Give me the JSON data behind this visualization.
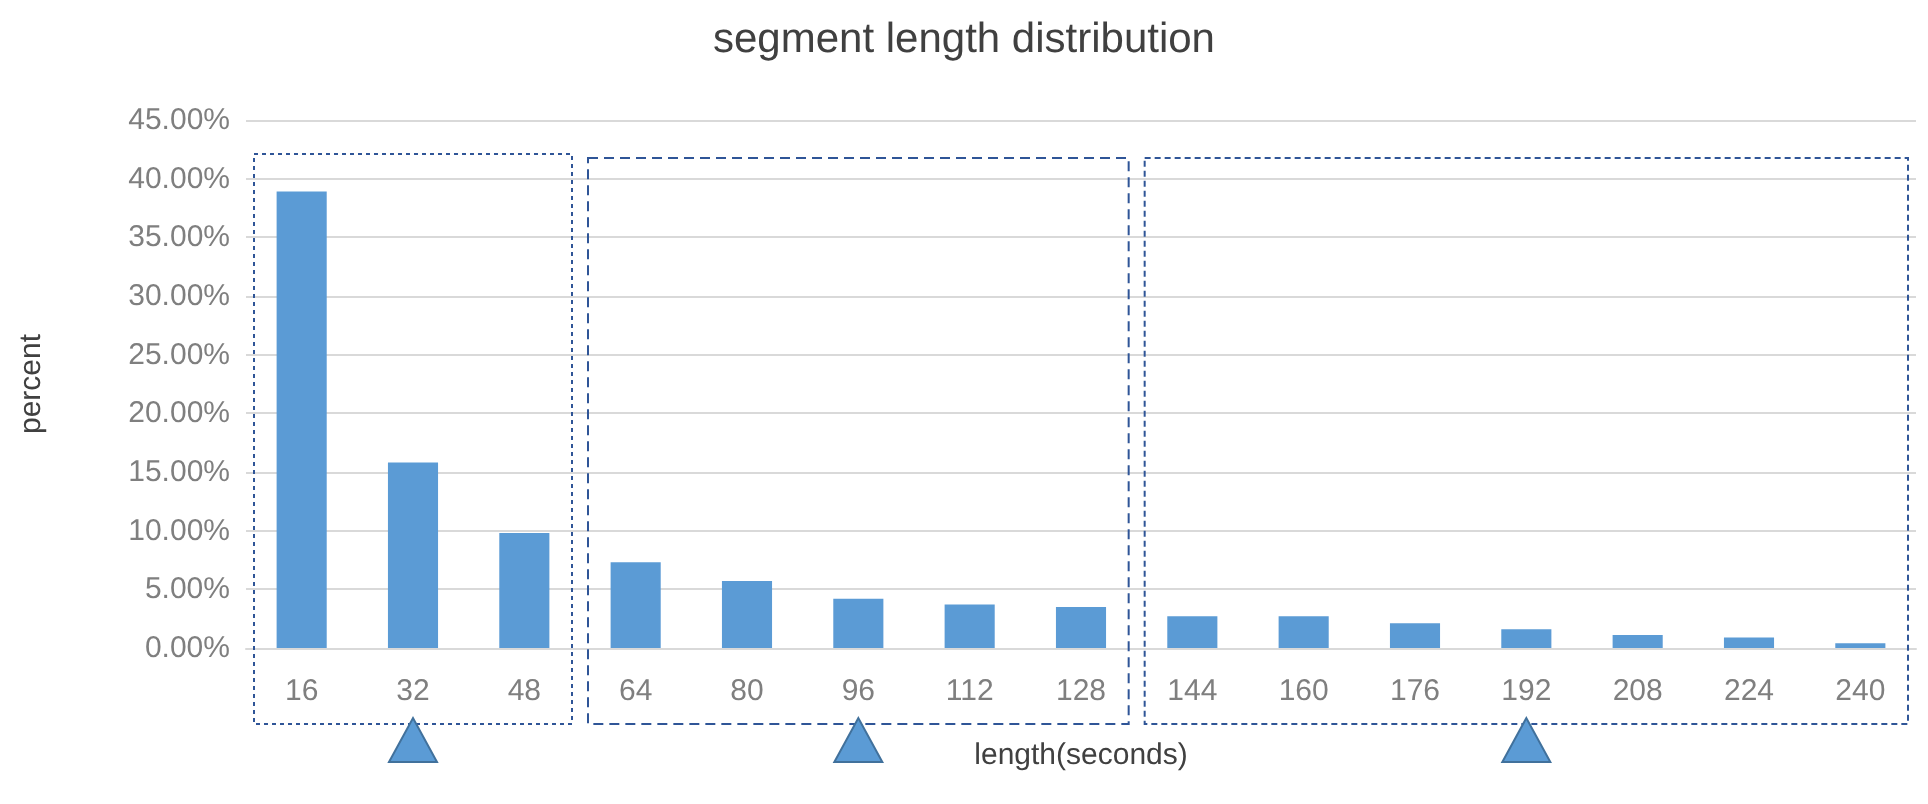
{
  "chart_data": {
    "type": "bar",
    "title": "segment length distribution",
    "xlabel": "length(seconds)",
    "ylabel": "percent",
    "categories": [
      "16",
      "32",
      "48",
      "64",
      "80",
      "96",
      "112",
      "128",
      "144",
      "160",
      "176",
      "192",
      "208",
      "224",
      "240"
    ],
    "values": [
      38.9,
      15.8,
      9.8,
      7.3,
      5.7,
      4.2,
      3.7,
      3.5,
      2.7,
      2.7,
      2.1,
      1.6,
      1.1,
      0.9,
      0.4
    ],
    "color": "#5b9bd5",
    "ylim": [
      0,
      45
    ],
    "yticks": [
      {
        "value": 0,
        "label": "0.00%"
      },
      {
        "value": 5,
        "label": "5.00%"
      },
      {
        "value": 10,
        "label": "10.00%"
      },
      {
        "value": 15,
        "label": "15.00%"
      },
      {
        "value": 20,
        "label": "20.00%"
      },
      {
        "value": 25,
        "label": "25.00%"
      },
      {
        "value": 30,
        "label": "30.00%"
      },
      {
        "value": 35,
        "label": "35.00%"
      },
      {
        "value": 40,
        "label": "40.00%"
      },
      {
        "value": 45,
        "label": "45.00%"
      }
    ],
    "grid": "y"
  }
}
